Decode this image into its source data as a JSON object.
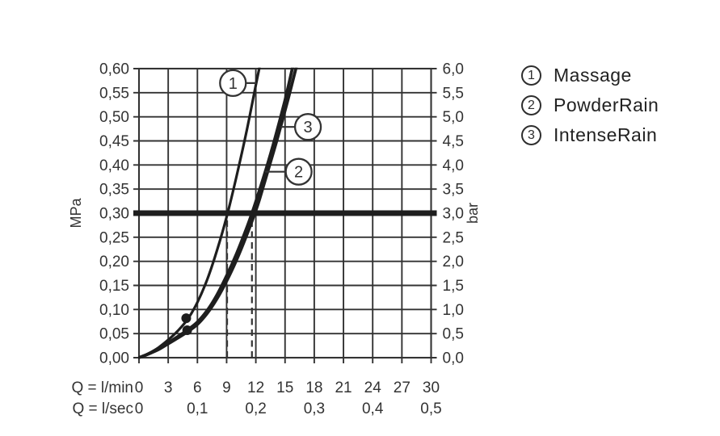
{
  "colors": {
    "background": "#ffffff",
    "ink": "#333333",
    "curve": "#1e1e1e"
  },
  "chart_data": {
    "type": "line",
    "title": "",
    "x_range": [
      0,
      30
    ],
    "y_range": [
      0,
      0.6
    ],
    "y_step": 0.05,
    "grid": true,
    "x_axis_lmin": {
      "label": "Q = l/min",
      "ticks": [
        0,
        3,
        6,
        9,
        12,
        15,
        18,
        21,
        24,
        27,
        30
      ]
    },
    "x_axis_lsec": {
      "label": "Q = l/sec",
      "ticks": [
        {
          "text": "0",
          "q": 0
        },
        {
          "text": "0,1",
          "q": 6
        },
        {
          "text": "0,2",
          "q": 12
        },
        {
          "text": "0,3",
          "q": 18
        },
        {
          "text": "0,4",
          "q": 24
        },
        {
          "text": "0,5",
          "q": 30
        }
      ]
    },
    "y_axis_left": {
      "label": "MPa",
      "ticks": [
        "0,60",
        "0,55",
        "0,50",
        "0,45",
        "0,40",
        "0,35",
        "0,30",
        "0,25",
        "0,20",
        "0,15",
        "0,10",
        "0,05",
        "0,00"
      ]
    },
    "y_axis_right": {
      "label": "bar",
      "ticks": [
        "6,0",
        "5,5",
        "5,0",
        "4,5",
        "4,0",
        "3,5",
        "3,0",
        "2,5",
        "2,0",
        "1,5",
        "1,0",
        "0,5",
        "0,0"
      ]
    },
    "reference_line_mpa": 0.3,
    "dashed_lines_q": [
      9.05,
      11.6
    ],
    "markers": [
      {
        "q": 4.85,
        "mpa": 0.082
      },
      {
        "q": 4.95,
        "mpa": 0.057
      }
    ],
    "series": [
      {
        "id": 1,
        "name": "Massage",
        "points": [
          [
            0,
            0
          ],
          [
            1,
            0.009
          ],
          [
            2,
            0.021
          ],
          [
            3,
            0.037
          ],
          [
            4,
            0.056
          ],
          [
            5,
            0.08
          ],
          [
            6,
            0.115
          ],
          [
            7,
            0.162
          ],
          [
            8,
            0.222
          ],
          [
            9,
            0.292
          ],
          [
            10,
            0.375
          ],
          [
            11,
            0.465
          ],
          [
            12,
            0.566
          ],
          [
            12.4,
            0.605
          ]
        ]
      },
      {
        "id": 2,
        "name": "PowderRain",
        "points": [
          [
            0,
            0
          ],
          [
            1,
            0.008
          ],
          [
            2,
            0.018
          ],
          [
            3,
            0.031
          ],
          [
            4,
            0.044
          ],
          [
            5,
            0.058
          ],
          [
            6,
            0.074
          ],
          [
            7,
            0.098
          ],
          [
            8,
            0.13
          ],
          [
            9,
            0.17
          ],
          [
            10,
            0.215
          ],
          [
            11,
            0.266
          ],
          [
            11.6,
            0.3
          ],
          [
            12,
            0.324
          ],
          [
            13,
            0.388
          ],
          [
            14,
            0.458
          ],
          [
            15,
            0.535
          ],
          [
            15.8,
            0.605
          ]
        ]
      },
      {
        "id": 3,
        "name": "IntenseRain",
        "points": [
          [
            0,
            0
          ],
          [
            1,
            0.008
          ],
          [
            2,
            0.017
          ],
          [
            3,
            0.029
          ],
          [
            4,
            0.041
          ],
          [
            5,
            0.054
          ],
          [
            6,
            0.069
          ],
          [
            7,
            0.092
          ],
          [
            8,
            0.122
          ],
          [
            9,
            0.159
          ],
          [
            10,
            0.202
          ],
          [
            11,
            0.251
          ],
          [
            11.9,
            0.3
          ],
          [
            12.4,
            0.33
          ],
          [
            13.3,
            0.392
          ],
          [
            14.3,
            0.461
          ],
          [
            15.3,
            0.536
          ],
          [
            16.2,
            0.607
          ]
        ]
      }
    ],
    "callouts": [
      {
        "label": "1",
        "circle_q": 9.65,
        "circle_mpa": 0.57,
        "anchor_q": 12.05
      },
      {
        "label": "3",
        "circle_q": 17.35,
        "circle_mpa": 0.479,
        "anchor_q": 14.55
      },
      {
        "label": "2",
        "circle_q": 16.4,
        "circle_mpa": 0.386,
        "anchor_q": 12.95
      }
    ]
  },
  "legend": {
    "items": [
      {
        "number": "1",
        "label": "Massage"
      },
      {
        "number": "2",
        "label": "PowderRain"
      },
      {
        "number": "3",
        "label": "IntenseRain"
      }
    ]
  }
}
